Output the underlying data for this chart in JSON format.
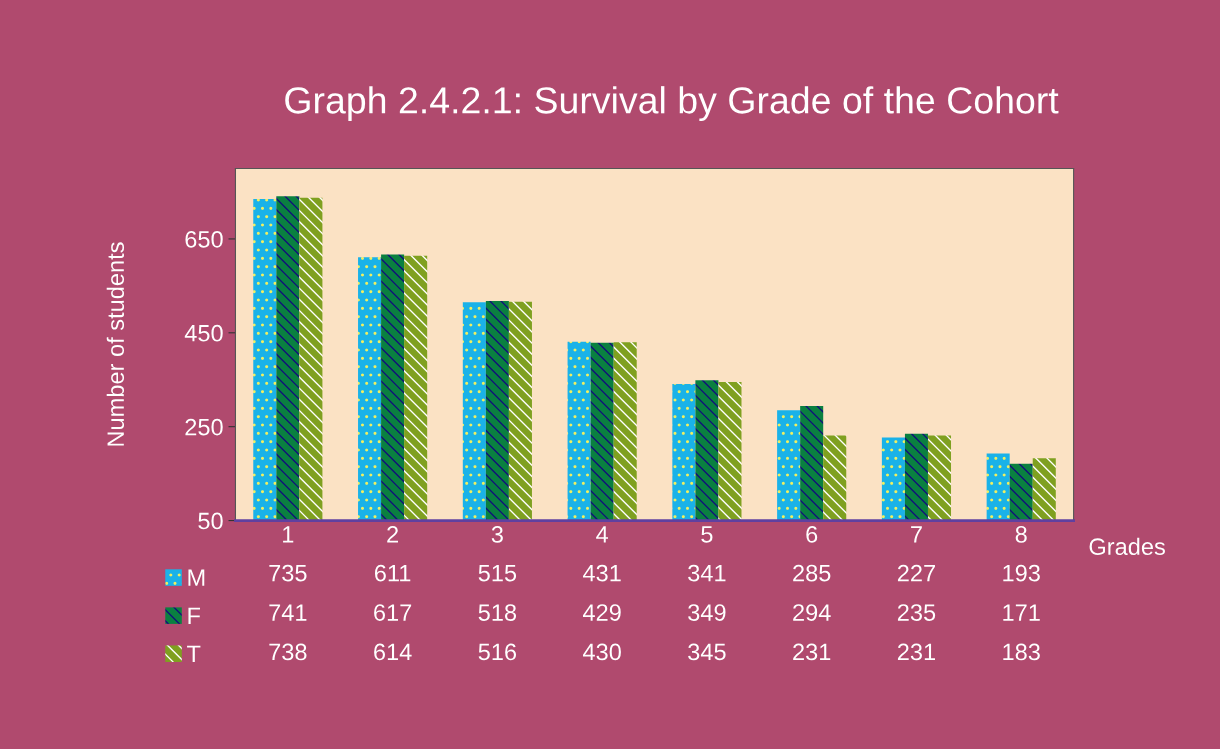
{
  "chart_data": {
    "type": "bar",
    "title": "Graph 2.4.2.1: Survival by Grade of the Cohort",
    "xlabel": "Grades",
    "ylabel": "Number of students",
    "categories": [
      "1",
      "2",
      "3",
      "4",
      "5",
      "6",
      "7",
      "8"
    ],
    "series": [
      {
        "name": "M",
        "color": "#1ab2e8",
        "values": [
          735,
          611,
          515,
          431,
          341,
          285,
          227,
          193
        ]
      },
      {
        "name": "F",
        "color": "#0a8040",
        "values": [
          741,
          617,
          518,
          429,
          349,
          294,
          235,
          171
        ]
      },
      {
        "name": "T",
        "color": "#7fa020",
        "values": [
          738,
          614,
          516,
          430,
          345,
          231,
          231,
          183
        ]
      }
    ],
    "ylim": [
      50,
      800
    ],
    "yticks": [
      50,
      250,
      450,
      650
    ],
    "grid": false,
    "legend": "bottom left",
    "data_labels": true
  }
}
